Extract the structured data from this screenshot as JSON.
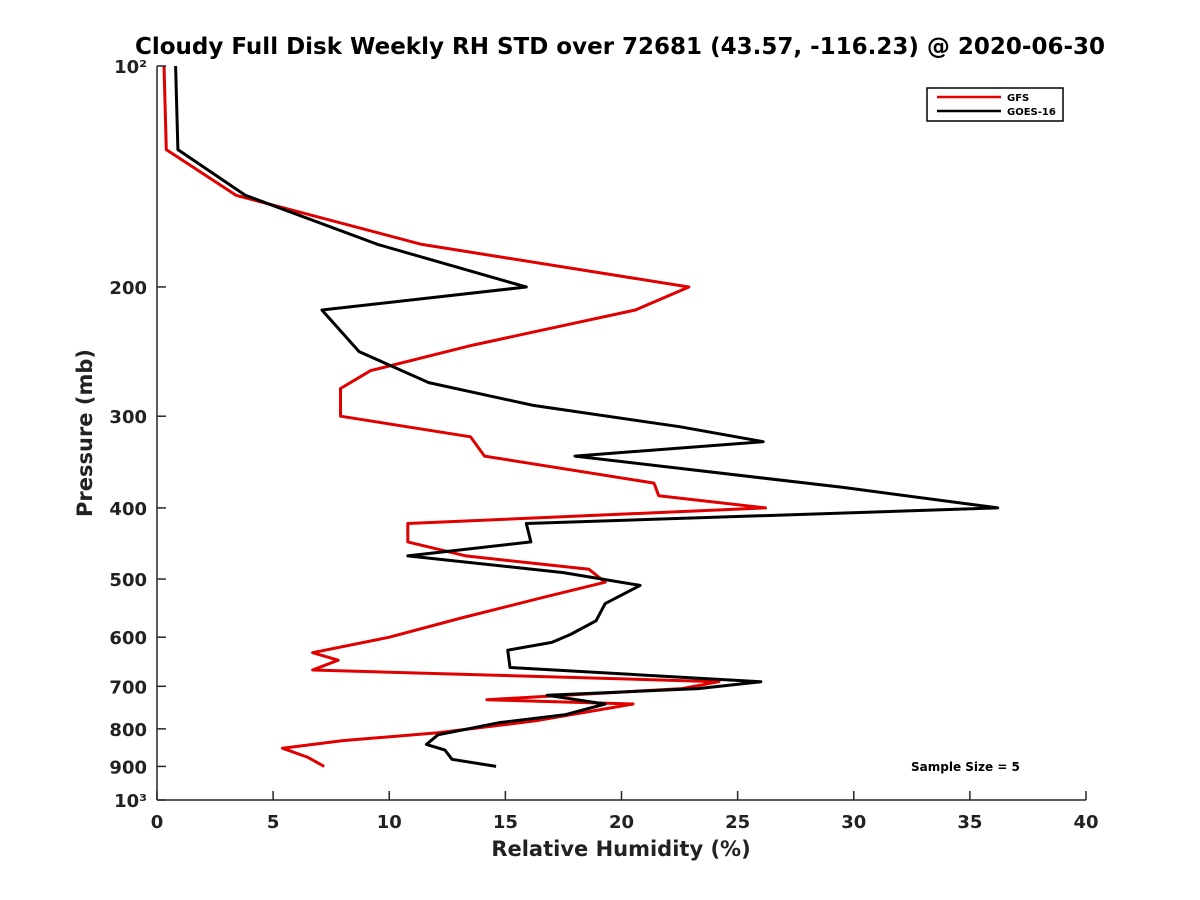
{
  "chart_data": {
    "type": "line",
    "title": "Cloudy Full Disk Weekly RH STD over 72681 (43.57, -116.23) @ 2020-06-30",
    "xlabel": "Relative Humidity (%)",
    "ylabel": "Pressure (mb)",
    "xlim": [
      0,
      40
    ],
    "ylim": [
      100,
      1000
    ],
    "y_scale": "log",
    "y_reversed": true,
    "x_ticks": [
      0,
      5,
      10,
      15,
      20,
      25,
      30,
      35,
      40
    ],
    "x_tick_labels": [
      "0",
      "5",
      "10",
      "15",
      "20",
      "25",
      "30",
      "35",
      "40"
    ],
    "y_ticks": [
      100,
      200,
      300,
      400,
      500,
      600,
      700,
      800,
      900,
      1000
    ],
    "y_tick_labels": [
      "10²",
      "200",
      "300",
      "400",
      "500",
      "600",
      "700",
      "800",
      "900",
      "10³"
    ],
    "grid": false,
    "legend": "top-right",
    "series": [
      {
        "name": "GFS",
        "color": "#e00000",
        "points": [
          [
            0.3,
            100
          ],
          [
            0.4,
            130
          ],
          [
            3.4,
            150
          ],
          [
            11.4,
            175
          ],
          [
            22.9,
            200
          ],
          [
            20.6,
            215
          ],
          [
            13.6,
            240
          ],
          [
            9.2,
            260
          ],
          [
            7.9,
            275
          ],
          [
            7.9,
            300
          ],
          [
            13.5,
            320
          ],
          [
            14.1,
            340
          ],
          [
            21.4,
            370
          ],
          [
            21.6,
            385
          ],
          [
            26.2,
            400
          ],
          [
            10.8,
            420
          ],
          [
            10.8,
            445
          ],
          [
            13.3,
            465
          ],
          [
            18.6,
            485
          ],
          [
            19.3,
            505
          ],
          [
            16.6,
            530
          ],
          [
            13.1,
            565
          ],
          [
            10.0,
            600
          ],
          [
            6.7,
            630
          ],
          [
            7.8,
            645
          ],
          [
            6.7,
            665
          ],
          [
            24.2,
            690
          ],
          [
            22.6,
            705
          ],
          [
            14.2,
            730
          ],
          [
            20.5,
            740
          ],
          [
            16.3,
            780
          ],
          [
            12.1,
            810
          ],
          [
            8.0,
            830
          ],
          [
            5.4,
            850
          ],
          [
            6.5,
            875
          ],
          [
            7.2,
            900
          ]
        ]
      },
      {
        "name": "GOES-16",
        "color": "#000000",
        "points": [
          [
            0.8,
            100
          ],
          [
            0.9,
            130
          ],
          [
            3.8,
            150
          ],
          [
            9.5,
            175
          ],
          [
            15.9,
            200
          ],
          [
            7.1,
            215
          ],
          [
            8.7,
            245
          ],
          [
            11.7,
            270
          ],
          [
            16.2,
            290
          ],
          [
            22.5,
            310
          ],
          [
            26.1,
            325
          ],
          [
            18.0,
            340
          ],
          [
            29.5,
            375
          ],
          [
            36.2,
            400
          ],
          [
            15.9,
            420
          ],
          [
            16.1,
            445
          ],
          [
            10.8,
            465
          ],
          [
            17.5,
            490
          ],
          [
            20.8,
            510
          ],
          [
            19.3,
            540
          ],
          [
            18.9,
            570
          ],
          [
            17.8,
            595
          ],
          [
            17.0,
            610
          ],
          [
            15.1,
            625
          ],
          [
            15.2,
            660
          ],
          [
            26.0,
            690
          ],
          [
            23.3,
            705
          ],
          [
            16.8,
            720
          ],
          [
            19.3,
            740
          ],
          [
            17.6,
            765
          ],
          [
            14.7,
            785
          ],
          [
            12.1,
            815
          ],
          [
            11.6,
            840
          ],
          [
            12.4,
            855
          ],
          [
            12.7,
            880
          ],
          [
            14.6,
            900
          ]
        ]
      }
    ],
    "annotations": [
      {
        "text": "Sample Size = 5"
      }
    ]
  }
}
